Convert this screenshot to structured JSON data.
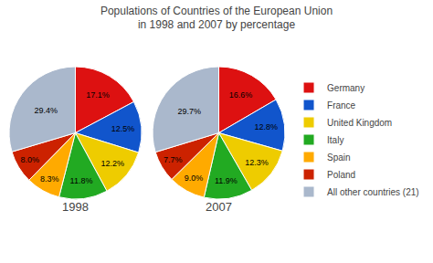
{
  "chart_data": {
    "type": "pie",
    "title": "Populations of Countries of the European Union\nin 1998 and 2007 by percentage",
    "categories": [
      "Germany",
      "France",
      "United Kingdom",
      "Italy",
      "Spain",
      "Poland",
      "All other countries (21)"
    ],
    "colors": [
      "#dd1111",
      "#1155cc",
      "#eecc00",
      "#22aa22",
      "#ffaa00",
      "#cc2200",
      "#aab8cc"
    ],
    "series": [
      {
        "name": "1998",
        "values": [
          17.1,
          12.5,
          12.2,
          11.8,
          8.3,
          8.0,
          29.4
        ],
        "value_labels": [
          "17.1%",
          "12.5%",
          "12.2%",
          "11.8%",
          "8.3%",
          "8.0%",
          "29.4%"
        ]
      },
      {
        "name": "2007",
        "values": [
          16.6,
          12.8,
          12.3,
          11.9,
          9.0,
          7.7,
          29.7
        ],
        "value_labels": [
          "16.6%",
          "12.8%",
          "12.3%",
          "11.9%",
          "9.0%",
          "7.7%",
          "29.7%"
        ]
      }
    ],
    "data_labels": true,
    "legend": "right"
  }
}
